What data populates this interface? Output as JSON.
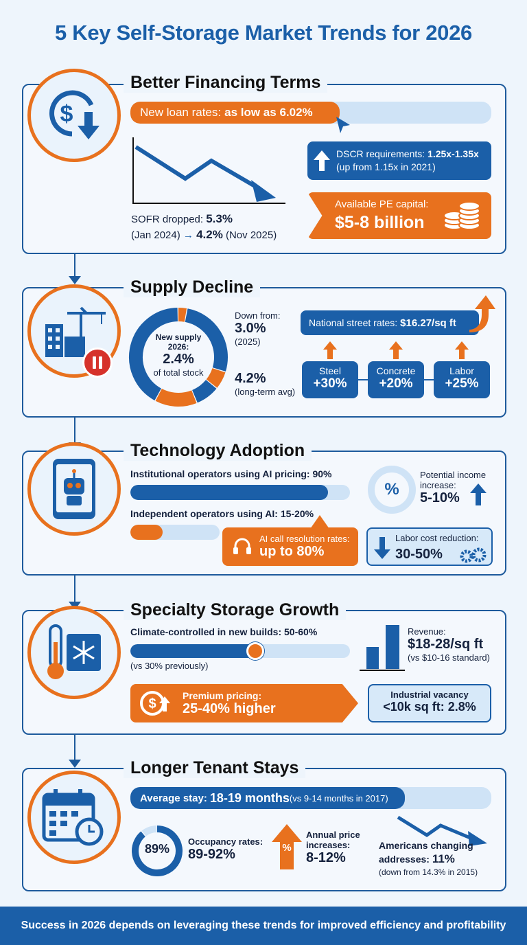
{
  "title": "5 Key Self-Storage Market Trends for 2026",
  "footer": "Success in 2026 depends on leveraging these trends for improved efficiency and profitability",
  "colors": {
    "blue": "#1b5fa8",
    "orange": "#e8711e",
    "light": "#cfe3f6"
  },
  "s1": {
    "title": "Better Financing Terms",
    "icon": "dollar-down-arrow-icon",
    "loan_label": "New loan rates: ",
    "loan_value": "as low as 6.02%",
    "sofr_label": "SOFR dropped: ",
    "sofr_from": "5.3%",
    "sofr_from_date": "(Jan 2024)",
    "sofr_arrow": "→",
    "sofr_to": "4.2%",
    "sofr_to_date": "(Nov 2025)",
    "dscr_label": "DSCR requirements: ",
    "dscr_value": "1.25x-1.35x",
    "dscr_note": "(up from 1.15x in 2021)",
    "pe_label": "Available PE capital:",
    "pe_value": "$5-8 billion"
  },
  "s2": {
    "title": "Supply Decline",
    "icon": "construction-crane-pause-icon",
    "donut_l1": "New supply",
    "donut_l2": "2026:",
    "donut_value": "2.4%",
    "donut_l3": "of total stock",
    "new_supply_pct": 2.4,
    "down_from": "Down from:",
    "prev_value": "3.0%",
    "prev_note": "(2025)",
    "avg_value": "4.2%",
    "avg_note": "(long-term avg)",
    "street_label": "National street rates: ",
    "street_value": "$16.27/sq ft",
    "costs": [
      {
        "label": "Steel",
        "value": "+30%"
      },
      {
        "label": "Concrete",
        "value": "+20%"
      },
      {
        "label": "Labor",
        "value": "+25%"
      }
    ]
  },
  "s3": {
    "title": "Technology Adoption",
    "icon": "smartphone-robot-icon",
    "inst_label": "Institutional operators using AI pricing: 90%",
    "inst_pct": 0.9,
    "ind_label": "Independent operators using AI: 15-20%",
    "ind_pct": 0.18,
    "income_symbol": "%",
    "income_label": "Potential income increase:",
    "income_value": "5-10%",
    "call_label": "AI call resolution rates:",
    "call_value": "up to 80%",
    "labor_label": "Labor cost reduction:",
    "labor_value": "30-50%"
  },
  "s4": {
    "title": "Specialty Storage Growth",
    "icon": "thermometer-snowflake-icon",
    "climate_label": "Climate-controlled in new builds: 50-60%",
    "climate_pct": 0.57,
    "climate_note": "(vs 30% previously)",
    "revenue_label": "Revenue:",
    "revenue_value": "$18-28/sq ft",
    "revenue_note": "(vs $10-16 standard)",
    "premium_label": "Premium pricing:",
    "premium_value": "25-40% higher",
    "vacancy_l1": "Industrial vacancy",
    "vacancy_l2": "<10k sq ft: 2.8%"
  },
  "s5": {
    "title": "Longer Tenant Stays",
    "icon": "calendar-clock-icon",
    "stay_label": "Average stay: ",
    "stay_value": "18-19 months",
    "stay_note": " (vs 9-14 months in 2017)",
    "occ_donut": "89%",
    "occ_pct": 0.89,
    "occ_label": "Occupancy rates:",
    "occ_value": "89-92%",
    "price_symbol": "%",
    "price_label_1": "Annual price",
    "price_label_2": "increases:",
    "price_value": "8-12%",
    "moving_l1": "Americans changing",
    "moving_l2": "addresses: ",
    "moving_value": "11%",
    "moving_note": "(down from 14.3% in 2015)"
  }
}
